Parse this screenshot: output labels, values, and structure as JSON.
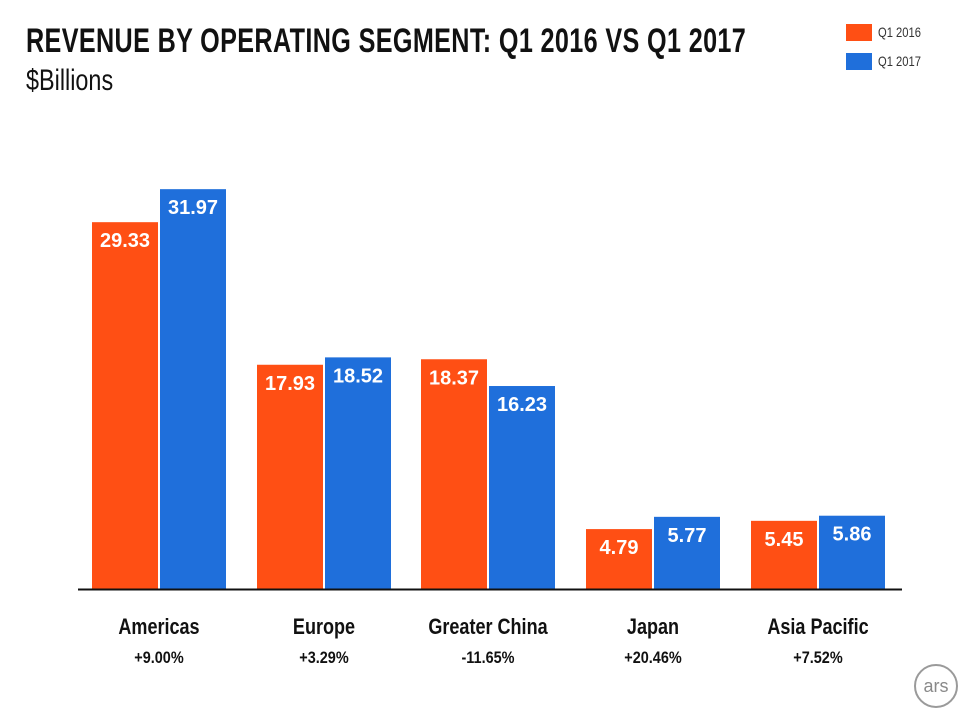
{
  "chart_data": {
    "type": "bar",
    "title": "REVENUE BY OPERATING SEGMENT: Q1 2016 VS Q1 2017",
    "subtitle": "$Billions",
    "categories": [
      "Americas",
      "Europe",
      "Greater China",
      "Japan",
      "Asia Pacific"
    ],
    "changes": [
      "+9.00%",
      "+3.29%",
      "-11.65%",
      "+20.46%",
      "+7.52%"
    ],
    "series": [
      {
        "name": "Q1 2016",
        "color": "#ff4f14",
        "values": [
          29.33,
          17.93,
          18.37,
          4.79,
          5.45
        ],
        "labels": [
          "29.33",
          "17.93",
          "18.37",
          "4.79",
          "5.45"
        ]
      },
      {
        "name": "Q1 2017",
        "color": "#1f6fdb",
        "values": [
          31.97,
          18.52,
          16.23,
          5.77,
          5.86
        ],
        "labels": [
          "31.97",
          "18.52",
          "16.23",
          "5.77",
          "5.86"
        ]
      }
    ],
    "ylim": [
      0,
      37.5
    ],
    "grid": false,
    "legend": "top-right"
  },
  "logo": {
    "text": "ars"
  }
}
